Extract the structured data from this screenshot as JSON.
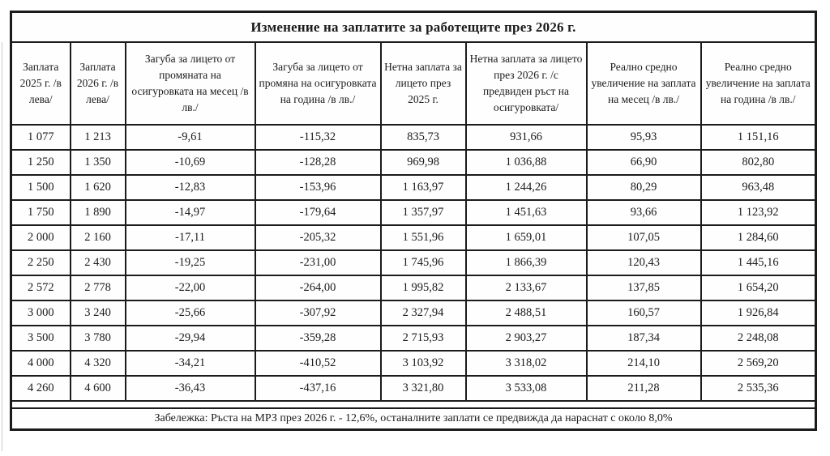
{
  "title": "Изменение на заплатите за работещите през 2026 г.",
  "columns": [
    "Заплата 2025 г. /в лева/",
    "Заплата 2026 г. /в лева/",
    "Загуба за лицето от промяната на осигуровката на месец /в лв./",
    "Загуба за лицето от промяна на осигуровката на година /в лв./",
    "Нетна заплата за лицето през 2025 г.",
    "Нетна заплата за лицето през 2026 г. /с предвиден ръст на осигуровката/",
    "Реално средно увеличение на заплата на месец /в лв./",
    "Реално средно увеличение на заплата на година /в лв./"
  ],
  "rows": [
    [
      "1 077",
      "1 213",
      "-9,61",
      "-115,32",
      "835,73",
      "931,66",
      "95,93",
      "1 151,16"
    ],
    [
      "1 250",
      "1 350",
      "-10,69",
      "-128,28",
      "969,98",
      "1 036,88",
      "66,90",
      "802,80"
    ],
    [
      "1 500",
      "1 620",
      "-12,83",
      "-153,96",
      "1 163,97",
      "1 244,26",
      "80,29",
      "963,48"
    ],
    [
      "1 750",
      "1 890",
      "-14,97",
      "-179,64",
      "1 357,97",
      "1 451,63",
      "93,66",
      "1 123,92"
    ],
    [
      "2 000",
      "2 160",
      "-17,11",
      "-205,32",
      "1 551,96",
      "1 659,01",
      "107,05",
      "1 284,60"
    ],
    [
      "2 250",
      "2 430",
      "-19,25",
      "-231,00",
      "1 745,96",
      "1 866,39",
      "120,43",
      "1 445,16"
    ],
    [
      "2 572",
      "2 778",
      "-22,00",
      "-264,00",
      "1 995,82",
      "2 133,67",
      "137,85",
      "1 654,20"
    ],
    [
      "3 000",
      "3 240",
      "-25,66",
      "-307,92",
      "2 327,94",
      "2 488,51",
      "160,57",
      "1 926,84"
    ],
    [
      "3 500",
      "3 780",
      "-29,94",
      "-359,28",
      "2 715,93",
      "2 903,27",
      "187,34",
      "2 248,08"
    ],
    [
      "4 000",
      "4 320",
      "-34,21",
      "-410,52",
      "3 103,92",
      "3 318,02",
      "214,10",
      "2 569,20"
    ],
    [
      "4 260",
      "4 600",
      "-36,43",
      "-437,16",
      "3 321,80",
      "3 533,08",
      "211,28",
      "2 535,36"
    ]
  ],
  "note": "Забележка: Ръста на МРЗ през 2026 г. - 12,6%, останалните заплати се предвижда да нараснат с около 8,0%",
  "colors": {
    "border": "#1b1b1b",
    "text": "#1b1b1b",
    "background": "#ffffff"
  }
}
